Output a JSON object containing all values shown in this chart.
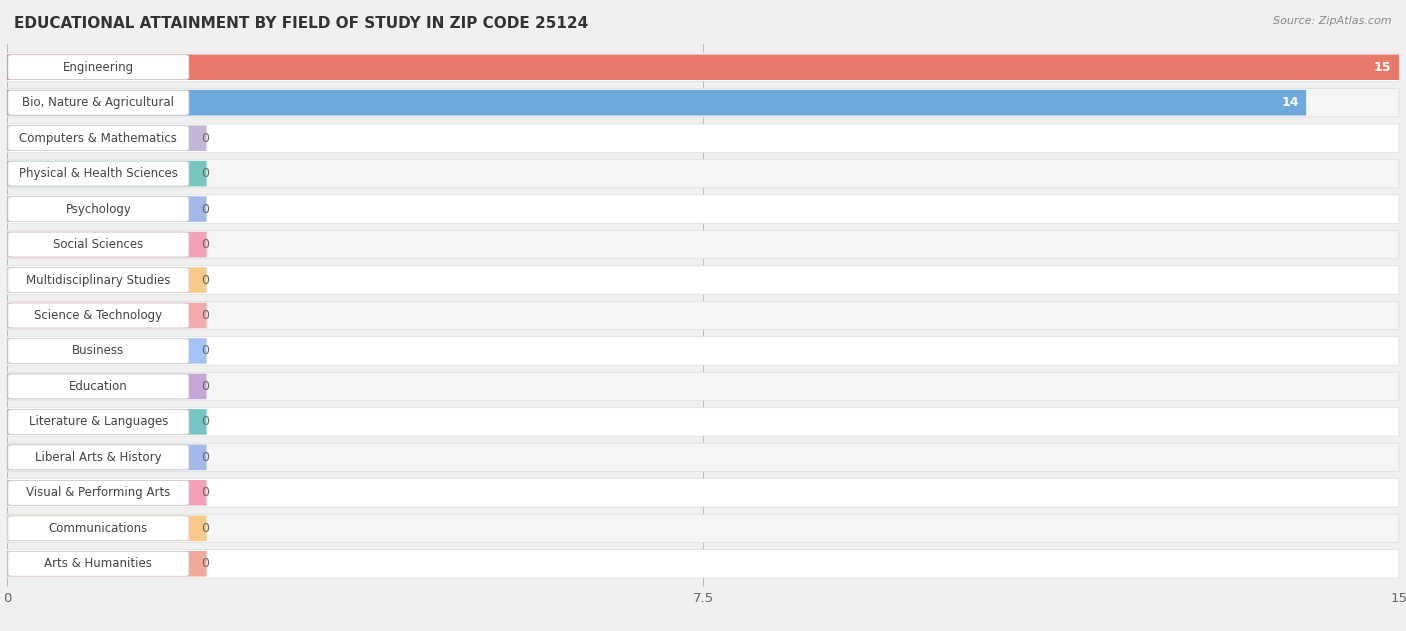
{
  "title": "EDUCATIONAL ATTAINMENT BY FIELD OF STUDY IN ZIP CODE 25124",
  "source": "Source: ZipAtlas.com",
  "categories": [
    "Engineering",
    "Bio, Nature & Agricultural",
    "Computers & Mathematics",
    "Physical & Health Sciences",
    "Psychology",
    "Social Sciences",
    "Multidisciplinary Studies",
    "Science & Technology",
    "Business",
    "Education",
    "Literature & Languages",
    "Liberal Arts & History",
    "Visual & Performing Arts",
    "Communications",
    "Arts & Humanities"
  ],
  "values": [
    15,
    14,
    0,
    0,
    0,
    0,
    0,
    0,
    0,
    0,
    0,
    0,
    0,
    0,
    0
  ],
  "bar_colors": [
    "#E8796A",
    "#6FA8DC",
    "#C4B5D9",
    "#76C5BF",
    "#A4B8E8",
    "#F4A0B8",
    "#F9C98A",
    "#F4AAAA",
    "#A4C2F4",
    "#C4A7D6",
    "#76C5C5",
    "#A4B8E8",
    "#F4A0B8",
    "#F9C98A",
    "#F2A89A"
  ],
  "xlim": [
    0,
    15
  ],
  "xticks": [
    0,
    7.5,
    15
  ],
  "background_color": "#f0f0f0",
  "row_bg_white": "#ffffff",
  "row_bg_light": "#f5f5f5",
  "title_fontsize": 11,
  "label_fontsize": 8.5,
  "value_fontsize": 9
}
